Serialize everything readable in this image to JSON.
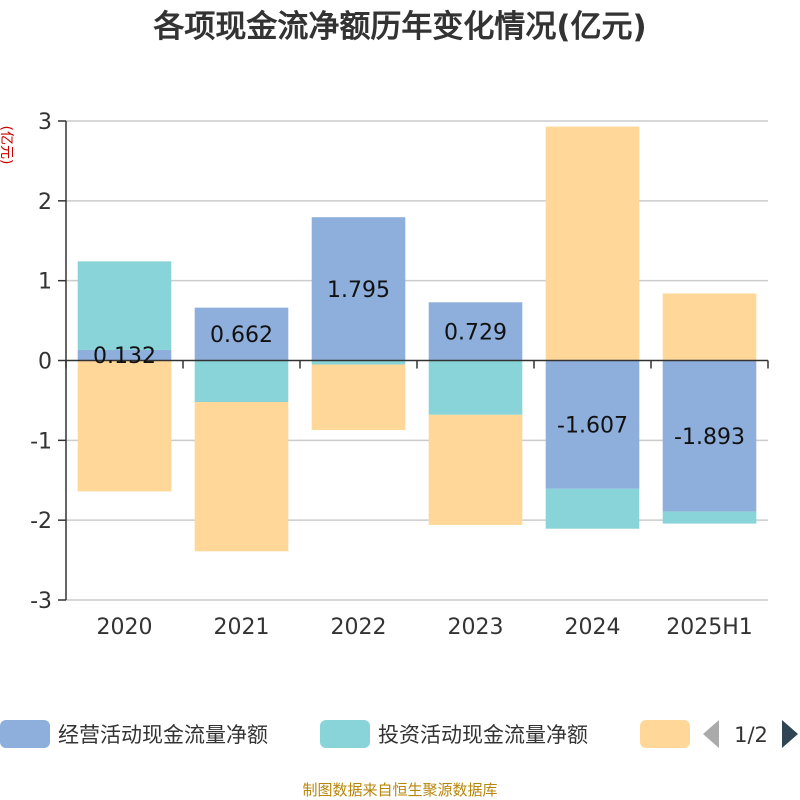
{
  "chart_data": {
    "type": "bar",
    "stacked": true,
    "title": "各项现金流净额历年变化情况(亿元)",
    "ylabel": "(亿元)",
    "categories": [
      "2020",
      "2021",
      "2022",
      "2023",
      "2024",
      "2025H1"
    ],
    "ylim": [
      -3,
      3
    ],
    "yticks": [
      -3,
      -2,
      -1,
      0,
      1,
      2,
      3
    ],
    "grid": true,
    "series": [
      {
        "name": "经营活动现金流量净额",
        "color": "#8eaedb",
        "values": [
          0.132,
          0.662,
          1.795,
          0.729,
          -1.607,
          -1.893
        ],
        "labels": [
          "0.132",
          "0.662",
          "1.795",
          "0.729",
          "-1.607",
          "-1.893"
        ]
      },
      {
        "name": "投资活动现金流量净额",
        "color": "#88d4d8",
        "values": [
          1.11,
          -0.52,
          -0.05,
          -0.68,
          -0.5,
          -0.15
        ]
      },
      {
        "name": "",
        "color": "#ffd899",
        "values": [
          -1.64,
          -1.87,
          -0.82,
          -1.38,
          2.93,
          0.84
        ]
      }
    ],
    "legend": {
      "position": "bottom",
      "page": "1/2"
    }
  },
  "source": "制图数据来自恒生聚源数据库"
}
